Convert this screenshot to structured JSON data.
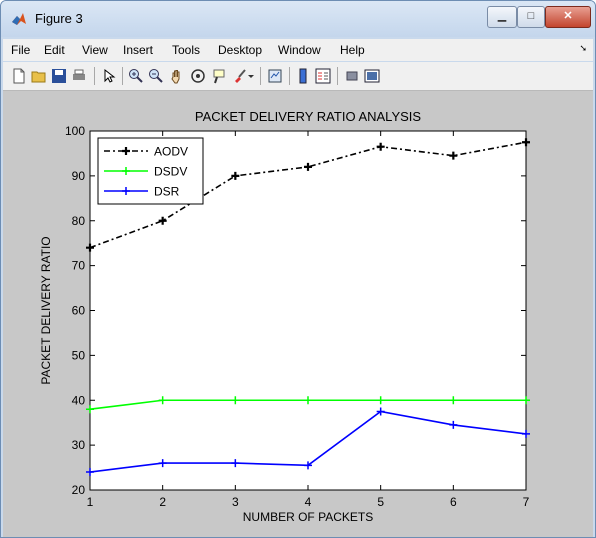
{
  "window": {
    "title": "Figure 3"
  },
  "menu": {
    "items": [
      "File",
      "Edit",
      "View",
      "Insert",
      "Tools",
      "Desktop",
      "Window",
      "Help"
    ]
  },
  "toolbar": {
    "icons": [
      "new-figure-icon",
      "open-file-icon",
      "save-icon",
      "print-icon",
      "edit-plot-arrow-icon",
      "zoom-in-icon",
      "zoom-out-icon",
      "pan-hand-icon",
      "rotate-3d-icon",
      "data-cursor-icon",
      "brush-icon",
      "link-plot-icon",
      "insert-colorbar-icon",
      "insert-legend-icon",
      "hide-plot-tools-icon",
      "show-plot-tools-icon"
    ]
  },
  "chart_data": {
    "type": "line",
    "title": "PACKET DELIVERY RATIO ANALYSIS",
    "xlabel": "NUMBER OF PACKETS",
    "ylabel": "PACKET DELIVERY RATIO",
    "x": [
      1,
      2,
      3,
      4,
      5,
      6,
      7
    ],
    "xlim": [
      1,
      7
    ],
    "ylim": [
      20,
      100
    ],
    "xticks": [
      "1",
      "2",
      "3",
      "4",
      "5",
      "6",
      "7"
    ],
    "yticks": [
      "20",
      "30",
      "40",
      "50",
      "60",
      "70",
      "80",
      "90",
      "100"
    ],
    "legend": "top-left",
    "grid": false,
    "series": [
      {
        "name": "AODV",
        "color": "#000000",
        "dash": "dash-dot",
        "values": [
          74,
          80,
          90,
          92,
          96.5,
          94.5,
          97.5
        ]
      },
      {
        "name": "DSDV",
        "color": "#00ff00",
        "dash": "solid",
        "values": [
          38,
          40,
          40,
          40,
          40,
          40,
          40
        ]
      },
      {
        "name": "DSR",
        "color": "#0000ff",
        "dash": "solid",
        "values": [
          24,
          26,
          26,
          25.5,
          37.5,
          34.5,
          32.5
        ]
      }
    ]
  }
}
